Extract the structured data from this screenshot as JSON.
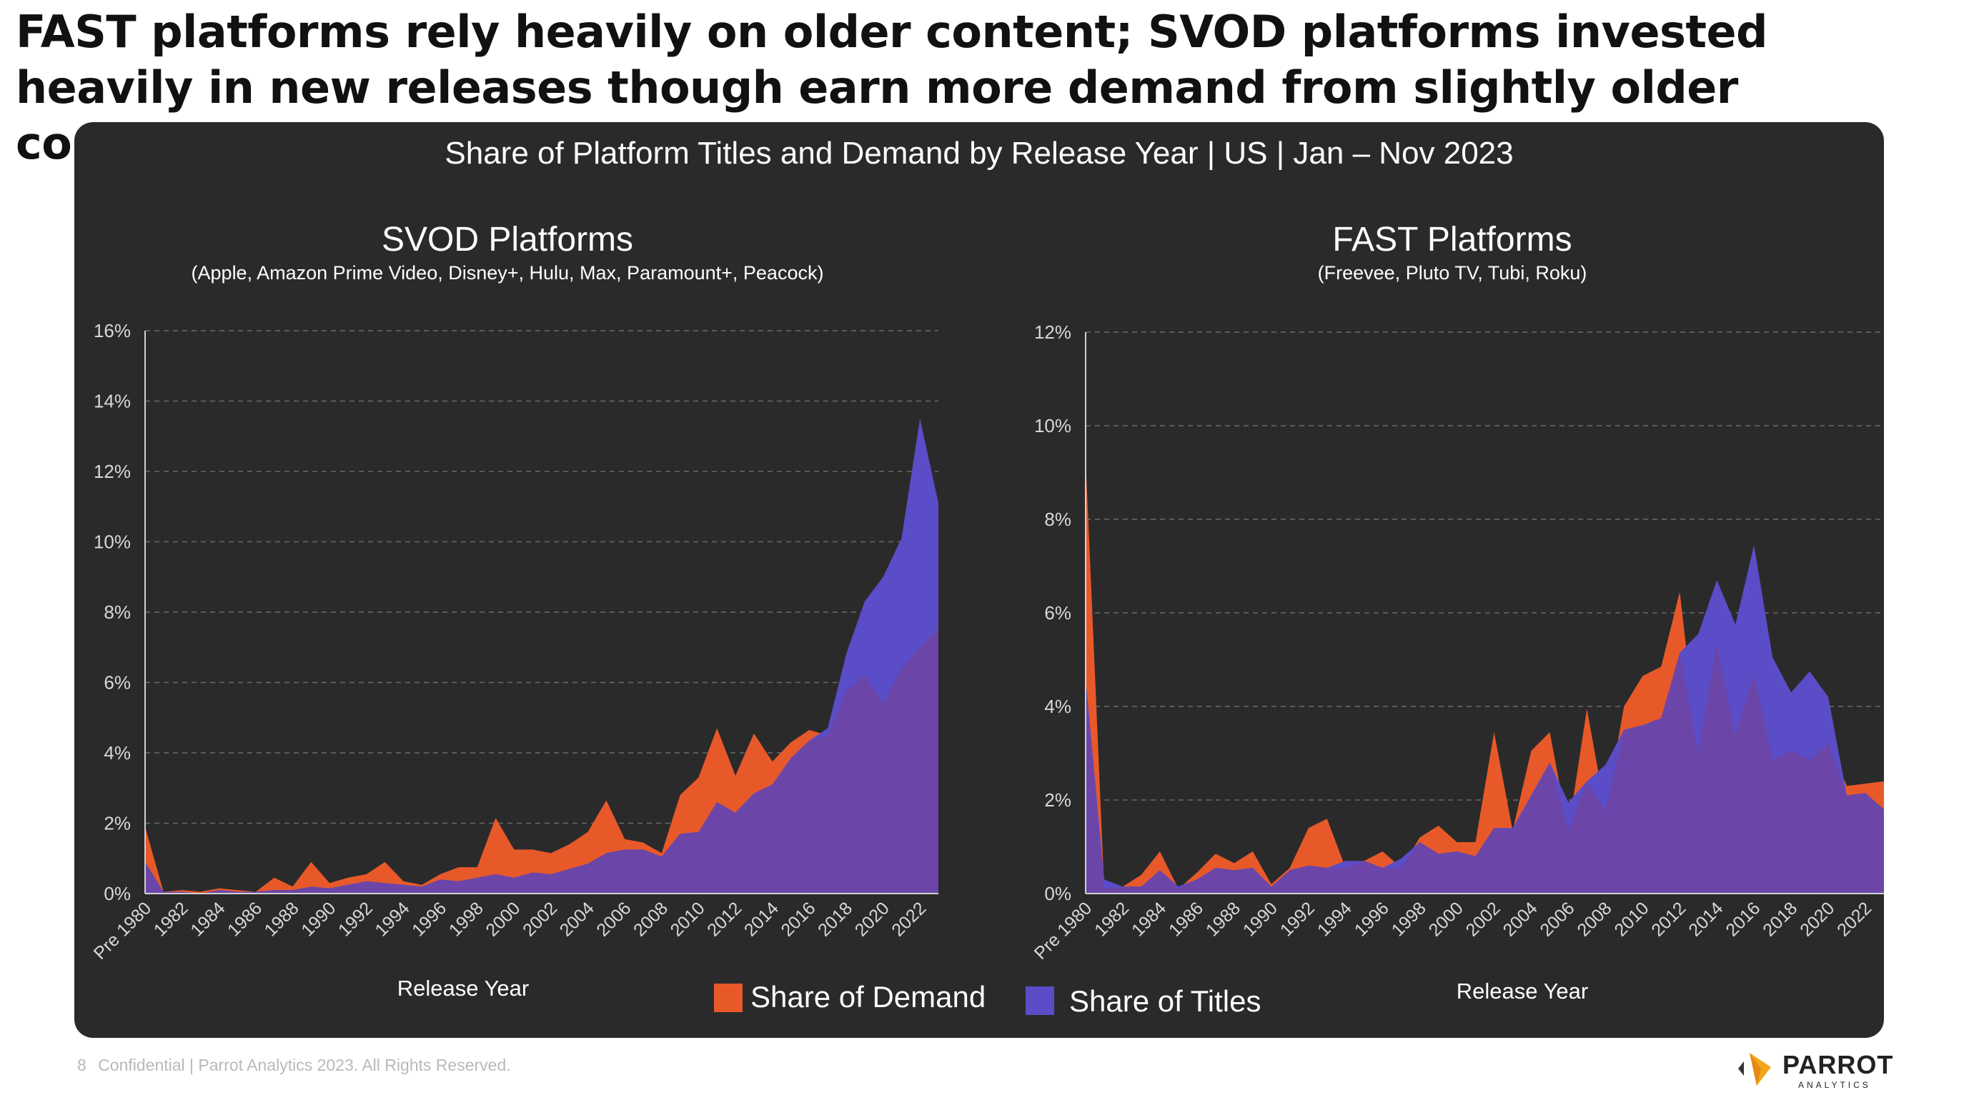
{
  "headline": "FAST platforms rely heavily on older content; SVOD platforms invested heavily in new releases though earn more demand from slightly older content.",
  "panel_title": "Share of Platform Titles and Demand by Release Year | US | Jan – Nov 2023",
  "footer": {
    "page": "8",
    "text": "Confidential  |  Parrot Analytics 2023. All Rights Reserved."
  },
  "logo": {
    "word": "PARROT",
    "sub": "ANALYTICS"
  },
  "colors": {
    "panel_bg": "#2b2a2a",
    "demand": "#e8592a",
    "titles": "#5b4cc8",
    "overlap": "#6b46a8"
  },
  "legend": {
    "demand": "Share of Demand",
    "titles": "Share of Titles"
  },
  "chart_data": [
    {
      "type": "area",
      "title": "SVOD Platforms",
      "subtitle": "(Apple, Amazon Prime Video, Disney+, Hulu, Max, Paramount+, Peacock)",
      "xlabel": "Release Year",
      "ylabel": "",
      "ylim": [
        0,
        16
      ],
      "yticks": [
        "0%",
        "2%",
        "4%",
        "6%",
        "8%",
        "10%",
        "12%",
        "14%",
        "16%"
      ],
      "xticks": [
        "Pre 1980",
        "1982",
        "1984",
        "1986",
        "1988",
        "1990",
        "1992",
        "1994",
        "1996",
        "1998",
        "2000",
        "2002",
        "2004",
        "2006",
        "2008",
        "2010",
        "2012",
        "2014",
        "2016",
        "2018",
        "2020",
        "2022"
      ],
      "categories": [
        "Pre 1980",
        "1981",
        "1982",
        "1983",
        "1984",
        "1985",
        "1986",
        "1987",
        "1988",
        "1989",
        "1990",
        "1991",
        "1992",
        "1993",
        "1994",
        "1995",
        "1996",
        "1997",
        "1998",
        "1999",
        "2000",
        "2001",
        "2002",
        "2003",
        "2004",
        "2005",
        "2006",
        "2007",
        "2008",
        "2009",
        "2010",
        "2011",
        "2012",
        "2013",
        "2014",
        "2015",
        "2016",
        "2017",
        "2018",
        "2019",
        "2020",
        "2021",
        "2022",
        "2023"
      ],
      "series": [
        {
          "name": "Share of Demand",
          "values": [
            1.9,
            0.05,
            0.1,
            0.05,
            0.15,
            0.1,
            0.05,
            0.45,
            0.2,
            0.9,
            0.3,
            0.45,
            0.55,
            0.9,
            0.35,
            0.25,
            0.55,
            0.75,
            0.75,
            2.15,
            1.25,
            1.25,
            1.15,
            1.4,
            1.75,
            2.65,
            1.55,
            1.45,
            1.15,
            2.8,
            3.3,
            4.7,
            3.35,
            4.55,
            3.75,
            4.3,
            4.65,
            4.5,
            5.75,
            6.2,
            5.4,
            6.4,
            7.0,
            7.55
          ]
        },
        {
          "name": "Share of Titles",
          "values": [
            0.9,
            0.05,
            0.05,
            0.0,
            0.1,
            0.05,
            0.05,
            0.1,
            0.1,
            0.2,
            0.15,
            0.25,
            0.35,
            0.3,
            0.25,
            0.2,
            0.4,
            0.35,
            0.45,
            0.55,
            0.45,
            0.6,
            0.55,
            0.7,
            0.85,
            1.15,
            1.25,
            1.25,
            1.05,
            1.7,
            1.75,
            2.6,
            2.3,
            2.85,
            3.1,
            3.85,
            4.35,
            4.7,
            6.8,
            8.3,
            9.0,
            10.1,
            13.5,
            11.1
          ]
        }
      ]
    },
    {
      "type": "area",
      "title": "FAST Platforms",
      "subtitle": "(Freevee, Pluto TV, Tubi, Roku)",
      "xlabel": "Release Year",
      "ylabel": "",
      "ylim": [
        0,
        12
      ],
      "yticks": [
        "0%",
        "2%",
        "4%",
        "6%",
        "8%",
        "10%",
        "12%"
      ],
      "xticks": [
        "Pre 1980",
        "1982",
        "1984",
        "1986",
        "1988",
        "1990",
        "1992",
        "1994",
        "1996",
        "1998",
        "2000",
        "2002",
        "2004",
        "2006",
        "2008",
        "2010",
        "2012",
        "2014",
        "2016",
        "2018",
        "2020",
        "2022"
      ],
      "categories": [
        "Pre 1980",
        "1981",
        "1982",
        "1983",
        "1984",
        "1985",
        "1986",
        "1987",
        "1988",
        "1989",
        "1990",
        "1991",
        "1992",
        "1993",
        "1994",
        "1995",
        "1996",
        "1997",
        "1998",
        "1999",
        "2000",
        "2001",
        "2002",
        "2003",
        "2004",
        "2005",
        "2006",
        "2007",
        "2008",
        "2009",
        "2010",
        "2011",
        "2012",
        "2013",
        "2014",
        "2015",
        "2016",
        "2017",
        "2018",
        "2019",
        "2020",
        "2021",
        "2022",
        "2023"
      ],
      "series": [
        {
          "name": "Share of Demand",
          "values": [
            9.3,
            0.1,
            0.15,
            0.4,
            0.9,
            0.1,
            0.45,
            0.85,
            0.65,
            0.9,
            0.2,
            0.55,
            1.4,
            1.6,
            0.55,
            0.7,
            0.9,
            0.55,
            1.2,
            1.45,
            1.1,
            1.1,
            3.45,
            1.35,
            3.05,
            3.45,
            1.35,
            3.95,
            1.75,
            4.0,
            4.65,
            4.85,
            6.45,
            3.0,
            5.35,
            3.35,
            4.7,
            2.85,
            3.05,
            2.85,
            3.2,
            2.3,
            2.35,
            2.4
          ]
        },
        {
          "name": "Share of Titles",
          "values": [
            4.6,
            0.3,
            0.15,
            0.15,
            0.5,
            0.15,
            0.3,
            0.55,
            0.5,
            0.55,
            0.15,
            0.5,
            0.6,
            0.55,
            0.7,
            0.7,
            0.55,
            0.75,
            1.1,
            0.85,
            0.9,
            0.8,
            1.4,
            1.4,
            2.1,
            2.8,
            1.95,
            2.4,
            2.75,
            3.5,
            3.6,
            3.75,
            5.15,
            5.55,
            6.7,
            5.75,
            7.45,
            5.05,
            4.3,
            4.75,
            4.2,
            2.1,
            2.15,
            1.8
          ]
        }
      ]
    }
  ]
}
